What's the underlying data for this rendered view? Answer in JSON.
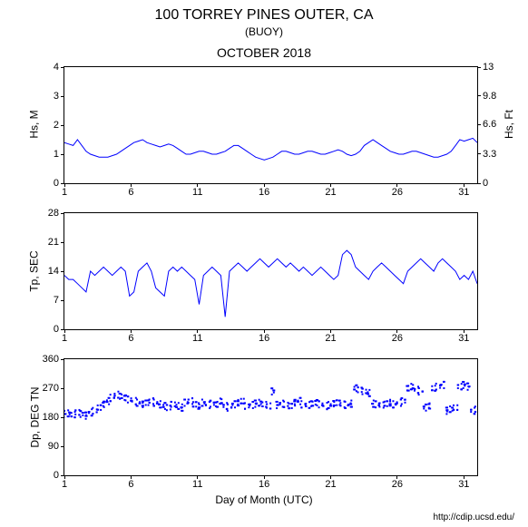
{
  "header": {
    "title": "100 TORREY PINES OUTER, CA",
    "subtitle": "(BUOY)",
    "period": "OCTOBER 2018"
  },
  "footer": {
    "url": "http://cdip.ucsd.edu/"
  },
  "xaxis": {
    "label": "Day of Month (UTC)",
    "min": 1,
    "max": 32,
    "ticks": [
      1,
      6,
      11,
      16,
      21,
      26,
      31
    ]
  },
  "colors": {
    "line": "#0000ff",
    "axis": "#000000",
    "background": "#ffffff"
  },
  "chart1": {
    "type": "line",
    "ylabel_left": "Hs, M",
    "ylabel_right": "Hs, Ft",
    "ylim": [
      0,
      4
    ],
    "yticks": [
      0,
      1,
      2,
      3,
      4
    ],
    "ylim_r": [
      0,
      13
    ],
    "yticks_r": [
      0,
      3.3,
      6.6,
      9.8,
      13
    ],
    "line_width": 1,
    "data": [
      1.4,
      1.35,
      1.3,
      1.5,
      1.3,
      1.1,
      1.0,
      0.95,
      0.9,
      0.9,
      0.9,
      0.95,
      1.0,
      1.1,
      1.2,
      1.3,
      1.4,
      1.45,
      1.5,
      1.4,
      1.35,
      1.3,
      1.25,
      1.3,
      1.35,
      1.3,
      1.2,
      1.1,
      1.0,
      1.0,
      1.05,
      1.1,
      1.1,
      1.05,
      1.0,
      1.0,
      1.05,
      1.1,
      1.2,
      1.3,
      1.3,
      1.2,
      1.1,
      1.0,
      0.9,
      0.85,
      0.8,
      0.85,
      0.9,
      1.0,
      1.1,
      1.1,
      1.05,
      1.0,
      1.0,
      1.05,
      1.1,
      1.1,
      1.05,
      1.0,
      1.0,
      1.05,
      1.1,
      1.15,
      1.1,
      1.0,
      0.95,
      1.0,
      1.1,
      1.3,
      1.4,
      1.5,
      1.4,
      1.3,
      1.2,
      1.1,
      1.05,
      1.0,
      1.0,
      1.05,
      1.1,
      1.1,
      1.05,
      1.0,
      0.95,
      0.9,
      0.9,
      0.95,
      1.0,
      1.1,
      1.3,
      1.5,
      1.45,
      1.5,
      1.55,
      1.4
    ]
  },
  "chart2": {
    "type": "line",
    "ylabel_left": "Tp, SEC",
    "ylim": [
      0,
      28
    ],
    "yticks": [
      0,
      7,
      14,
      21,
      28
    ],
    "line_width": 1,
    "data": [
      13,
      12,
      12,
      11,
      10,
      9,
      14,
      13,
      14,
      15,
      14,
      13,
      14,
      15,
      14,
      8,
      9,
      14,
      15,
      16,
      14,
      10,
      9,
      8,
      14,
      15,
      14,
      15,
      14,
      13,
      12,
      6,
      13,
      14,
      15,
      14,
      13,
      3,
      14,
      15,
      16,
      15,
      14,
      15,
      16,
      17,
      16,
      15,
      16,
      17,
      16,
      15,
      16,
      15,
      14,
      15,
      14,
      13,
      14,
      15,
      14,
      13,
      12,
      13,
      18,
      19,
      18,
      15,
      14,
      13,
      12,
      14,
      15,
      16,
      15,
      14,
      13,
      12,
      11,
      14,
      15,
      16,
      17,
      16,
      15,
      14,
      16,
      17,
      16,
      15,
      14,
      12,
      13,
      12,
      14,
      11
    ]
  },
  "chart3": {
    "type": "scatter",
    "ylabel_left": "Dp, DEG TN",
    "ylim": [
      0,
      360
    ],
    "yticks": [
      0,
      90,
      180,
      270,
      360
    ],
    "marker_size": 2,
    "data": [
      190,
      192,
      188,
      195,
      190,
      185,
      195,
      200,
      210,
      220,
      230,
      240,
      250,
      245,
      240,
      235,
      230,
      225,
      220,
      225,
      230,
      225,
      220,
      215,
      210,
      220,
      215,
      210,
      225,
      230,
      220,
      215,
      225,
      218,
      222,
      220,
      230,
      215,
      210,
      220,
      225,
      230,
      215,
      218,
      222,
      225,
      220,
      215,
      260,
      218,
      222,
      220,
      215,
      225,
      230,
      220,
      218,
      222,
      225,
      220,
      215,
      218,
      222,
      225,
      220,
      218,
      222,
      270,
      265,
      260,
      255,
      222,
      220,
      218,
      222,
      225,
      220,
      225,
      230,
      270,
      275,
      265,
      260,
      210,
      215,
      270,
      275,
      280,
      200,
      205,
      210,
      275,
      280,
      275,
      200,
      205
    ]
  }
}
